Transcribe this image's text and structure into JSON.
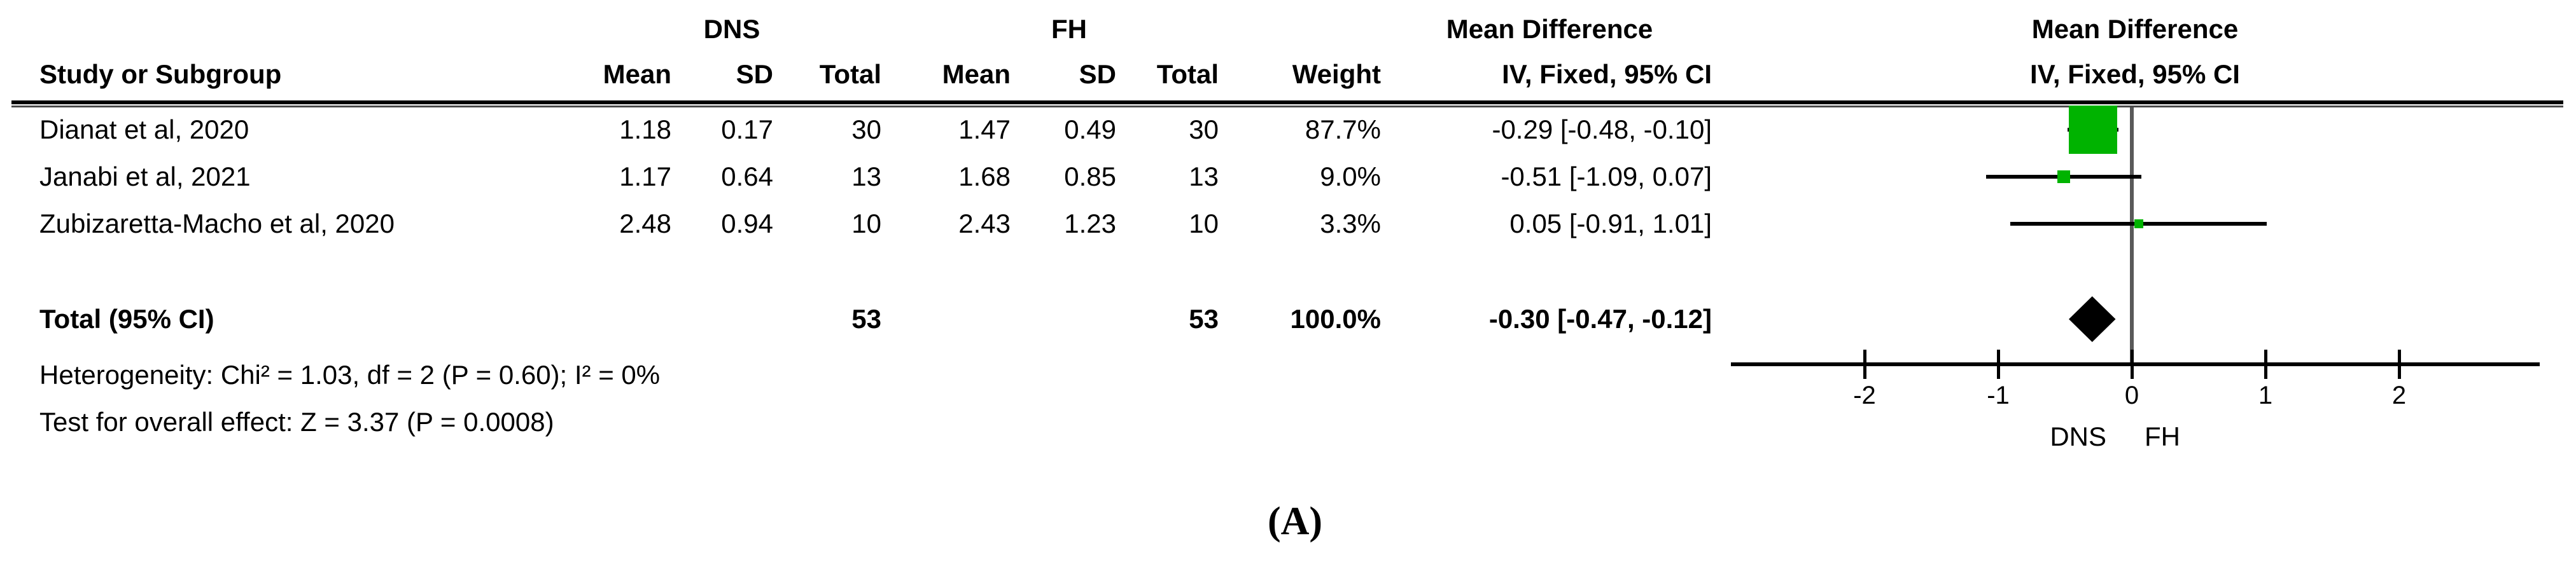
{
  "figure": {
    "caption": "(A)"
  },
  "table": {
    "group_headers": {
      "dns": "DNS",
      "fh": "FH",
      "md_left": "Mean Difference",
      "md_right": "Mean Difference"
    },
    "col_headers": {
      "study": "Study or Subgroup",
      "mean": "Mean",
      "sd": "SD",
      "total": "Total",
      "mean2": "Mean",
      "sd2": "SD",
      "total2": "Total",
      "weight": "Weight",
      "iv_left": "IV, Fixed, 95% CI",
      "iv_right": "IV, Fixed, 95% CI"
    },
    "rows": [
      {
        "study": "Dianat et al, 2020",
        "mean1": "1.18",
        "sd1": "0.17",
        "total1": "30",
        "mean2": "1.47",
        "sd2": "0.49",
        "total2": "30",
        "weight": "87.7%",
        "ci_text": "-0.29 [-0.48, -0.10]"
      },
      {
        "study": "Janabi et al, 2021",
        "mean1": "1.17",
        "sd1": "0.64",
        "total1": "13",
        "mean2": "1.68",
        "sd2": "0.85",
        "total2": "13",
        "weight": "9.0%",
        "ci_text": "-0.51 [-1.09, 0.07]"
      },
      {
        "study": "Zubizaretta-Macho et al, 2020",
        "mean1": "2.48",
        "sd1": "0.94",
        "total1": "10",
        "mean2": "2.43",
        "sd2": "1.23",
        "total2": "10",
        "weight": "3.3%",
        "ci_text": "0.05 [-0.91, 1.01]"
      }
    ],
    "total_row": {
      "label": "Total (95% CI)",
      "total1": "53",
      "total2": "53",
      "weight": "100.0%",
      "ci_text": "-0.30 [-0.47, -0.12]"
    },
    "footnotes": {
      "heterogeneity": "Heterogeneity: Chi² = 1.03, df = 2 (P = 0.60); I² = 0%",
      "overall_effect": "Test for overall effect: Z = 3.37 (P = 0.0008)"
    }
  },
  "chart_data": {
    "type": "forest",
    "title": "Mean Difference IV, Fixed, 95% CI",
    "x_axis": {
      "ticks": [
        -2,
        -1,
        0,
        1,
        2
      ],
      "min": -3,
      "max": 3.05,
      "label_left_of_zero": "DNS",
      "label_right_of_zero": "FH"
    },
    "studies": [
      {
        "name": "Dianat et al, 2020",
        "md": -0.29,
        "ci_low": -0.48,
        "ci_high": -0.1,
        "weight_pct": 87.7
      },
      {
        "name": "Janabi et al, 2021",
        "md": -0.51,
        "ci_low": -1.09,
        "ci_high": 0.07,
        "weight_pct": 9.0
      },
      {
        "name": "Zubizaretta-Macho et al, 2020",
        "md": 0.05,
        "ci_low": -0.91,
        "ci_high": 1.01,
        "weight_pct": 3.3
      }
    ],
    "pooled": {
      "md": -0.3,
      "ci_low": -0.47,
      "ci_high": -0.12
    },
    "marker_color": "#00b300",
    "diamond_color": "#000000",
    "zero_line_color": "#595959"
  }
}
